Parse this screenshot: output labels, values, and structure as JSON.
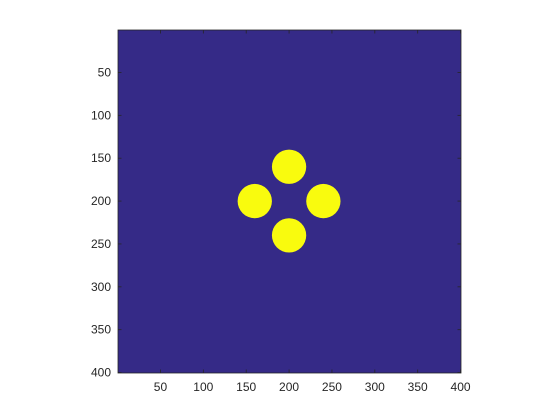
{
  "chart_data": {
    "type": "heatmap",
    "title": "",
    "xlabel": "",
    "ylabel": "",
    "xlim": [
      0.5,
      400.5
    ],
    "ylim": [
      0.5,
      400.5
    ],
    "y_axis_reversed": true,
    "grid": false,
    "x_ticks": [
      50,
      100,
      150,
      200,
      250,
      300,
      350,
      400
    ],
    "y_ticks": [
      50,
      100,
      150,
      200,
      250,
      300,
      350,
      400
    ],
    "x_tick_labels": [
      "50",
      "100",
      "150",
      "200",
      "250",
      "300",
      "350",
      "400"
    ],
    "y_tick_labels": [
      "50",
      "100",
      "150",
      "200",
      "250",
      "300",
      "350",
      "400"
    ],
    "values": [
      0,
      1
    ],
    "colors": {
      "0": "#352A87",
      "1": "#F9FB0E"
    },
    "regions": [
      {
        "shape": "disk",
        "value": 1,
        "center_x": 200,
        "center_y": 160,
        "radius": 20
      },
      {
        "shape": "disk",
        "value": 1,
        "center_x": 160,
        "center_y": 200,
        "radius": 20
      },
      {
        "shape": "disk",
        "value": 1,
        "center_x": 240,
        "center_y": 200,
        "radius": 20
      },
      {
        "shape": "disk",
        "value": 1,
        "center_x": 200,
        "center_y": 240,
        "radius": 20
      }
    ]
  }
}
